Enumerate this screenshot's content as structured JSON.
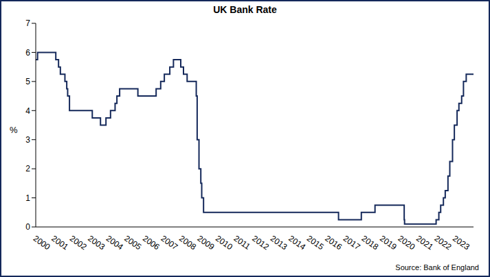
{
  "chart_data": {
    "type": "line",
    "title": "UK Bank Rate",
    "y_label": "%",
    "annotation": "Source: Bank of England",
    "color": "#14285a",
    "line_style": "step",
    "marker": "none",
    "grid": false,
    "x": [
      2000.0,
      2000.1,
      2001.1,
      2001.25,
      2001.35,
      2001.6,
      2001.7,
      2001.75,
      2001.85,
      2003.1,
      2003.55,
      2003.85,
      2004.1,
      2004.35,
      2004.45,
      2004.6,
      2005.6,
      2006.6,
      2006.85,
      2007.05,
      2007.35,
      2007.55,
      2007.95,
      2008.1,
      2008.3,
      2008.8,
      2008.85,
      2008.95,
      2009.05,
      2009.1,
      2009.2,
      2016.6,
      2017.85,
      2018.6,
      2020.2,
      2020.22,
      2021.95,
      2022.1,
      2022.2,
      2022.35,
      2022.45,
      2022.6,
      2022.7,
      2022.85,
      2022.95,
      2023.1,
      2023.2,
      2023.35,
      2023.45,
      2023.6,
      2024.0
    ],
    "values": [
      5.75,
      6.0,
      5.75,
      5.5,
      5.25,
      5.0,
      4.75,
      4.5,
      4.0,
      3.75,
      3.5,
      3.75,
      4.0,
      4.25,
      4.5,
      4.75,
      4.5,
      4.75,
      5.0,
      5.25,
      5.5,
      5.75,
      5.5,
      5.25,
      5.0,
      4.5,
      3.0,
      2.0,
      1.5,
      1.0,
      0.5,
      0.25,
      0.5,
      0.75,
      0.25,
      0.1,
      0.25,
      0.5,
      0.75,
      1.0,
      1.25,
      1.75,
      2.25,
      3.0,
      3.5,
      4.0,
      4.25,
      4.5,
      5.0,
      5.25,
      5.25
    ],
    "xlim": [
      2000,
      2024
    ],
    "xticks": [
      2000,
      2001,
      2002,
      2003,
      2004,
      2005,
      2006,
      2007,
      2008,
      2009,
      2010,
      2011,
      2012,
      2013,
      2014,
      2015,
      2016,
      2017,
      2018,
      2019,
      2020,
      2021,
      2022,
      2023
    ],
    "ylim": [
      0,
      7
    ],
    "yticks": [
      0,
      1,
      2,
      3,
      4,
      5,
      6,
      7
    ]
  }
}
